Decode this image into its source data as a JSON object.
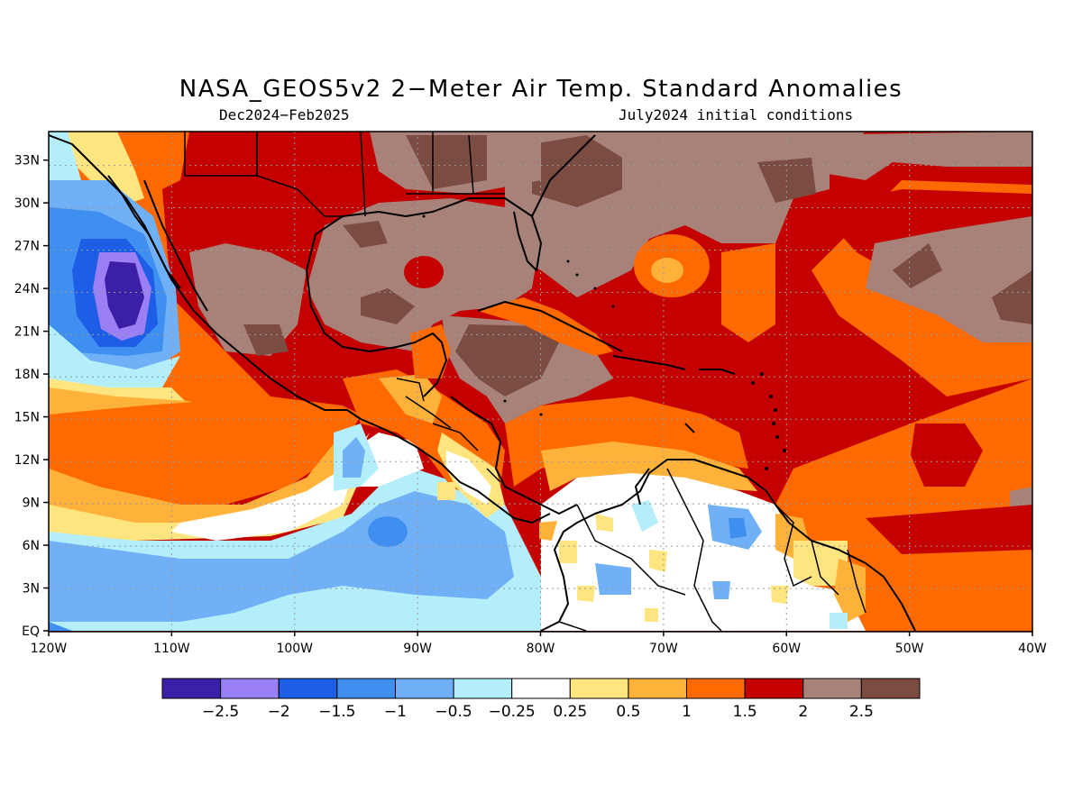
{
  "title": "NASA_GEOS5v2 2−Meter Air Temp. Standard Anomalies",
  "subtitle_left": "Dec2024−Feb2025",
  "subtitle_right": "July2024 initial conditions",
  "map": {
    "lon_range": [
      -120,
      -40
    ],
    "lat_range": [
      0,
      35
    ],
    "x_ticks": [
      "120W",
      "110W",
      "100W",
      "90W",
      "80W",
      "70W",
      "60W",
      "50W",
      "40W"
    ],
    "y_ticks": [
      "EQ",
      "3N",
      "6N",
      "9N",
      "12N",
      "15N",
      "18N",
      "21N",
      "24N",
      "27N",
      "30N",
      "33N"
    ],
    "grid": true
  },
  "colorbar": {
    "colors": [
      "#3b1fa6",
      "#9b7ff4",
      "#1e5ee6",
      "#3f8ff0",
      "#70b0f7",
      "#b3eefa",
      "#ffffff",
      "#ffe57f",
      "#ffb23a",
      "#ff6a00",
      "#c40000",
      "#a88179",
      "#7a4c42"
    ],
    "labels": [
      "−2.5",
      "−2",
      "−1.5",
      "−1",
      "−0.5",
      "−0.25",
      "0.25",
      "0.5",
      "1",
      "1.5",
      "2",
      "2.5"
    ]
  }
}
